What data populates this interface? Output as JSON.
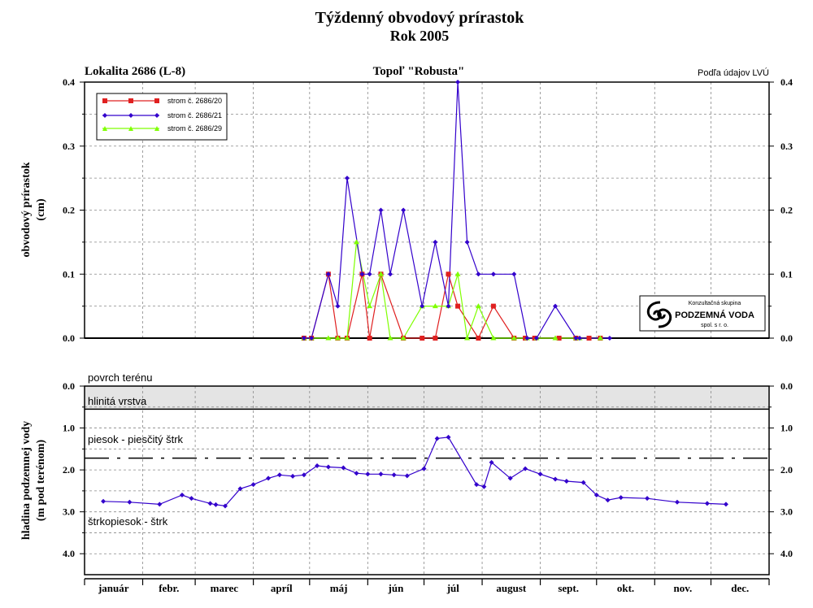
{
  "chart": {
    "title": "Týždenný obvodový prírastok",
    "subtitle": "Rok 2005",
    "location_label": "Lokalita 2686 (L-8)",
    "tree_label": "Topoľ \"Robusta\"",
    "source_label": "Podľa údajov LVÚ",
    "months": [
      "január",
      "febr.",
      "marec",
      "apríl",
      "máj",
      "jún",
      "júl",
      "august",
      "sept.",
      "okt.",
      "nov.",
      "dec."
    ],
    "logo": {
      "line1": "Konzultačná skupina",
      "line2": "PODZEMNÁ VODA",
      "line3": "spol. s r. o."
    },
    "colors": {
      "red": "#e02020",
      "blue": "#3300cc",
      "green": "#7fff00",
      "clay": "#e4e4e4"
    }
  },
  "chart_data": [
    {
      "type": "line",
      "ylabel": [
        "obvodový prírastok",
        "(cm)"
      ],
      "ylim": [
        0,
        0.4
      ],
      "yticks": [
        "0.0",
        "0.1",
        "0.2",
        "0.3",
        "0.4"
      ],
      "x_unit": "day of year 2005",
      "grid": true,
      "legend_position": "top-left",
      "series": [
        {
          "name": "strom č. 2686/20",
          "color": "#e02020",
          "marker": "square",
          "x": [
            117,
            121,
            130,
            135,
            140,
            148,
            152,
            158,
            170,
            180,
            187,
            194,
            199,
            210,
            218,
            229,
            235,
            240,
            253,
            262,
            269,
            275
          ],
          "y": [
            0,
            0,
            0.1,
            0,
            0,
            0.1,
            0,
            0.1,
            0,
            0,
            0,
            0.1,
            0.05,
            0,
            0.05,
            0,
            0,
            0,
            0,
            0,
            0,
            0
          ]
        },
        {
          "name": "strom č. 2686/21",
          "color": "#3300cc",
          "marker": "diamond",
          "x": [
            117,
            121,
            130,
            135,
            140,
            148,
            152,
            158,
            163,
            170,
            180,
            187,
            194,
            199,
            204,
            210,
            218,
            229,
            236,
            241,
            251,
            262,
            264,
            280
          ],
          "y": [
            0,
            0,
            0.1,
            0.05,
            0.25,
            0.1,
            0.1,
            0.2,
            0.1,
            0.2,
            0.05,
            0.15,
            0.05,
            0.4,
            0.15,
            0.1,
            0.1,
            0.1,
            0,
            0,
            0.05,
            0,
            0,
            0
          ]
        },
        {
          "name": "strom č. 2686/29",
          "color": "#7fff00",
          "marker": "triangle",
          "x": [
            117,
            121,
            130,
            135,
            140,
            145,
            152,
            158,
            163,
            170,
            180,
            187,
            194,
            199,
            204,
            210,
            218,
            229,
            236,
            241,
            251,
            262,
            264,
            275
          ],
          "y": [
            0,
            0,
            0,
            0,
            0,
            0.15,
            0.05,
            0.1,
            0,
            0,
            0.05,
            0.05,
            0.05,
            0.1,
            0,
            0.05,
            0,
            0,
            0,
            0,
            0,
            0,
            0,
            0
          ]
        }
      ]
    },
    {
      "type": "line",
      "ylabel": [
        "hladina podzemnej vody",
        "(m pod terénom)"
      ],
      "ylim": [
        0,
        4.5
      ],
      "y_inverted": true,
      "yticks": [
        "0.0",
        "1.0",
        "2.0",
        "3.0",
        "4.0"
      ],
      "x_unit": "day of year 2005",
      "grid": true,
      "layers": {
        "surface": "povrch terénu",
        "clay": "hlinitá vrstva",
        "clay_bottom": 0.55,
        "sand_gravel": "piesok - piesčitý štrk",
        "sand_gravel_boundary": 1.72,
        "gravel_sand": "štrkopiesok - štrk"
      },
      "series": [
        {
          "name": "",
          "color": "#3300cc",
          "marker": "diamond",
          "x": [
            10,
            24,
            40,
            52,
            57,
            67,
            70,
            75,
            83,
            90,
            98,
            104,
            111,
            117,
            124,
            130,
            138,
            145,
            151,
            158,
            165,
            172,
            181,
            188,
            194,
            209,
            213,
            217,
            227,
            235,
            243,
            251,
            257,
            266,
            273,
            279,
            286,
            300,
            316,
            332,
            342
          ],
          "y": [
            2.75,
            2.77,
            2.82,
            2.6,
            2.68,
            2.8,
            2.83,
            2.86,
            2.45,
            2.35,
            2.2,
            2.12,
            2.15,
            2.12,
            1.9,
            1.93,
            1.95,
            2.08,
            2.1,
            2.1,
            2.12,
            2.14,
            1.97,
            1.25,
            1.22,
            2.35,
            2.4,
            1.82,
            2.2,
            1.97,
            2.1,
            2.22,
            2.27,
            2.3,
            2.6,
            2.72,
            2.66,
            2.68,
            2.77,
            2.8,
            2.82
          ]
        }
      ]
    }
  ]
}
